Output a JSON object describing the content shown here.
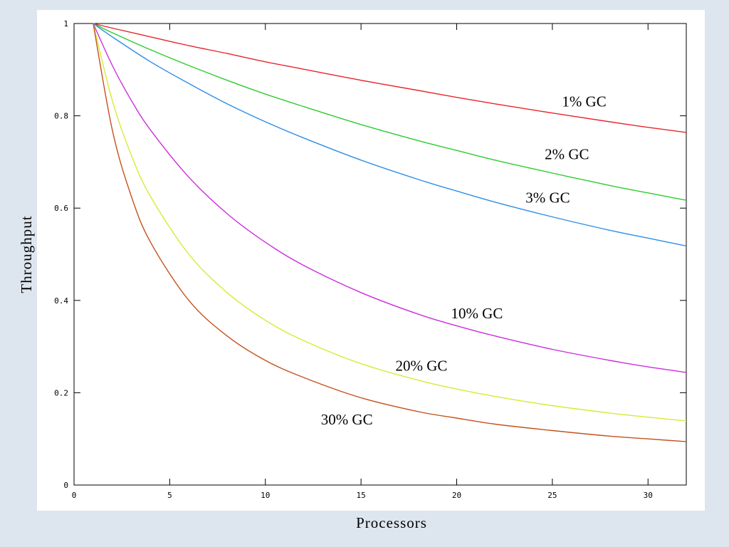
{
  "chart_data": {
    "type": "line",
    "title": "",
    "xlabel": "Processors",
    "ylabel": "Throughput",
    "xlim": [
      0,
      32
    ],
    "ylim": [
      0,
      1
    ],
    "xticks": [
      0,
      5,
      10,
      15,
      20,
      25,
      30
    ],
    "yticks": [
      0,
      0.2,
      0.4,
      0.6,
      0.8,
      1
    ],
    "xtick_labels": [
      "0",
      "5",
      "10",
      "15",
      "20",
      "25",
      "30"
    ],
    "ytick_labels": [
      "0",
      "0.2",
      "0.4",
      "0.6",
      "0.8",
      "1"
    ],
    "grid": false,
    "series": [
      {
        "name": "1% GC",
        "label": "1% GC",
        "color": "#e8262a",
        "x": [
          1,
          2,
          4,
          6,
          8,
          10,
          12,
          15,
          18,
          20,
          22,
          25,
          28,
          30,
          32
        ],
        "y": [
          1,
          0.99,
          0.971,
          0.952,
          0.935,
          0.917,
          0.901,
          0.877,
          0.855,
          0.84,
          0.826,
          0.806,
          0.787,
          0.775,
          0.764
        ]
      },
      {
        "name": "2% GC",
        "label": "2% GC",
        "color": "#2ecc2e",
        "x": [
          1,
          2,
          4,
          6,
          8,
          10,
          12,
          15,
          18,
          20,
          22,
          25,
          28,
          30,
          32
        ],
        "y": [
          1,
          0.98,
          0.943,
          0.909,
          0.877,
          0.847,
          0.82,
          0.781,
          0.746,
          0.725,
          0.704,
          0.676,
          0.649,
          0.633,
          0.617
        ]
      },
      {
        "name": "3% GC",
        "label": "3% GC",
        "color": "#2e8ee6",
        "x": [
          1,
          2,
          4,
          6,
          8,
          10,
          12,
          15,
          18,
          20,
          22,
          25,
          28,
          30,
          32
        ],
        "y": [
          1,
          0.971,
          0.917,
          0.87,
          0.826,
          0.787,
          0.752,
          0.704,
          0.662,
          0.637,
          0.613,
          0.581,
          0.552,
          0.535,
          0.518
        ]
      },
      {
        "name": "10% GC",
        "label": "10% GC",
        "color": "#cc2edc",
        "x": [
          1,
          2,
          3,
          4,
          6,
          8,
          10,
          12,
          15,
          18,
          20,
          22,
          25,
          28,
          30,
          32
        ],
        "y": [
          1,
          0.909,
          0.833,
          0.769,
          0.667,
          0.588,
          0.526,
          0.476,
          0.417,
          0.37,
          0.345,
          0.323,
          0.294,
          0.27,
          0.256,
          0.244
        ]
      },
      {
        "name": "20% GC",
        "label": "20% GC",
        "color": "#d8ea34",
        "x": [
          1,
          2,
          3,
          4,
          6,
          8,
          10,
          12,
          15,
          18,
          20,
          22,
          25,
          28,
          30,
          32
        ],
        "y": [
          1,
          0.833,
          0.714,
          0.625,
          0.5,
          0.417,
          0.357,
          0.313,
          0.263,
          0.227,
          0.208,
          0.192,
          0.172,
          0.156,
          0.147,
          0.139
        ]
      },
      {
        "name": "30% GC",
        "label": "30% GC",
        "color": "#c4521e",
        "x": [
          1,
          2,
          3,
          4,
          6,
          8,
          10,
          12,
          15,
          18,
          20,
          22,
          25,
          28,
          30,
          32
        ],
        "y": [
          1,
          0.769,
          0.625,
          0.526,
          0.4,
          0.323,
          0.27,
          0.233,
          0.189,
          0.159,
          0.145,
          0.132,
          0.118,
          0.106,
          0.1,
          0.094
        ]
      }
    ]
  }
}
